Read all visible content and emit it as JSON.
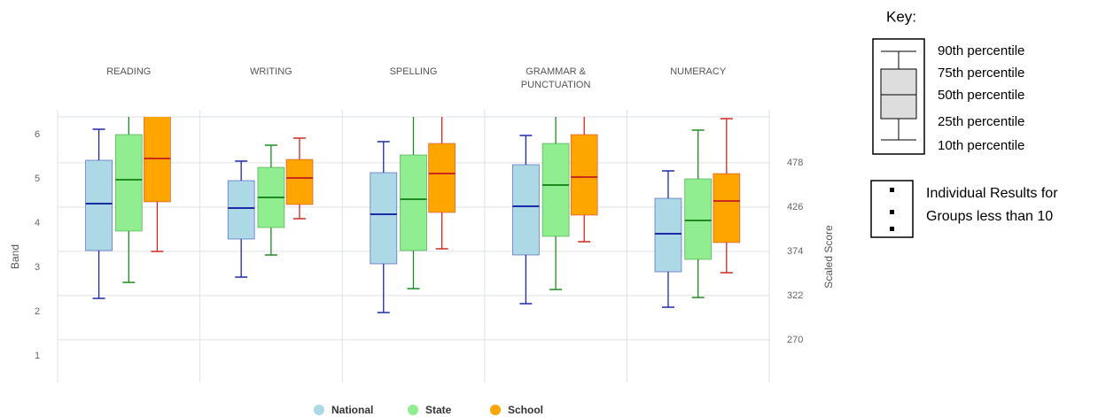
{
  "chart_data": {
    "type": "box",
    "categories": [
      "READING",
      "WRITING",
      "SPELLING",
      "GRAMMAR & PUNCTUATION",
      "NUMERACY"
    ],
    "ylabel": "Band",
    "y2label": "Scaled Score",
    "ylim": [
      0.4,
      6.4
    ],
    "yticks": [
      1,
      2,
      3,
      4,
      5,
      6
    ],
    "y2lim": [
      220,
      532
    ],
    "y2ticks": [
      270,
      322,
      374,
      426,
      478
    ],
    "grid": true,
    "legend": "bottom",
    "series": [
      {
        "name": "National",
        "color": "#add8e6",
        "stroke": "#1c2aa8",
        "low": [
          2.3,
          2.78,
          1.98,
          2.18,
          2.1
        ],
        "q1": [
          3.38,
          3.64,
          3.08,
          3.28,
          2.9
        ],
        "median": [
          4.44,
          4.34,
          4.2,
          4.38,
          3.76
        ],
        "q3": [
          5.42,
          4.96,
          5.14,
          5.32,
          4.56
        ],
        "high": [
          6.12,
          5.4,
          5.84,
          5.98,
          5.18
        ]
      },
      {
        "name": "State",
        "color": "#90ee90",
        "stroke": "#1f8a1f",
        "low": [
          2.66,
          3.28,
          2.52,
          2.5,
          2.32
        ],
        "q1": [
          3.82,
          3.9,
          3.38,
          3.7,
          3.18
        ],
        "median": [
          4.98,
          4.58,
          4.54,
          4.86,
          4.06
        ],
        "q3": [
          6.0,
          5.26,
          5.54,
          5.8,
          5.0
        ],
        "high": [
          6.5,
          5.76,
          6.5,
          6.5,
          6.1
        ]
      },
      {
        "name": "School",
        "color": "#ffa500",
        "stroke": "#cc2a1f",
        "low": [
          3.36,
          4.1,
          3.42,
          3.58,
          2.88
        ],
        "q1": [
          4.48,
          4.42,
          4.24,
          4.18,
          3.56
        ],
        "median": [
          5.46,
          5.02,
          5.12,
          5.04,
          4.5
        ],
        "q3": [
          6.5,
          5.44,
          5.8,
          6.0,
          5.12
        ],
        "high": [
          6.8,
          5.92,
          6.6,
          6.6,
          6.36
        ]
      }
    ],
    "key": {
      "title": "Key:",
      "labels": [
        "90th percentile",
        "75th percentile",
        "50th percentile",
        "25th percentile",
        "10th percentile"
      ],
      "note": [
        "Individual Results for",
        "Groups less than 10"
      ]
    }
  }
}
